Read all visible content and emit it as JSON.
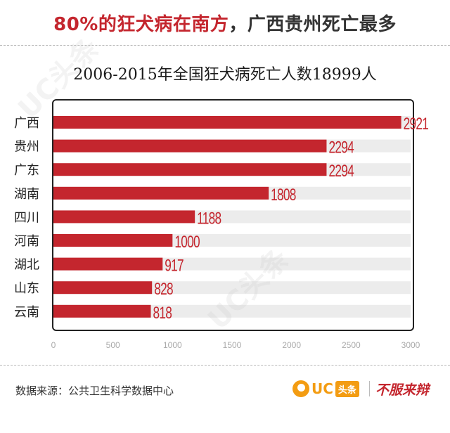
{
  "headline": {
    "accent": "80%的狂犬病在南方",
    "rest": "，广西贵州死亡最多"
  },
  "watermark_text": "UC头条",
  "footer": {
    "source": "数据来源：公共卫生科学数据中心",
    "logo_uc": "UC",
    "logo_badge": "头条",
    "slogan": "不服来辩"
  },
  "colors": {
    "bar": "#c4262e",
    "track": "#ececec",
    "value_label": "#c4262e",
    "accent": "#c4262e",
    "logo": "#f39c12"
  },
  "chart_data": {
    "type": "bar",
    "orientation": "horizontal",
    "title": "2006-2015年全国狂犬病死亡人数18999人",
    "categories": [
      "广西",
      "贵州",
      "广东",
      "湖南",
      "四川",
      "河南",
      "湖北",
      "山东",
      "云南"
    ],
    "values": [
      2921,
      2294,
      2294,
      1808,
      1188,
      1000,
      917,
      828,
      818
    ],
    "xlim": [
      0,
      3000
    ],
    "xticks": [
      0,
      500,
      1000,
      1500,
      2000,
      2500,
      3000
    ],
    "data_labels": true,
    "grid": false
  }
}
